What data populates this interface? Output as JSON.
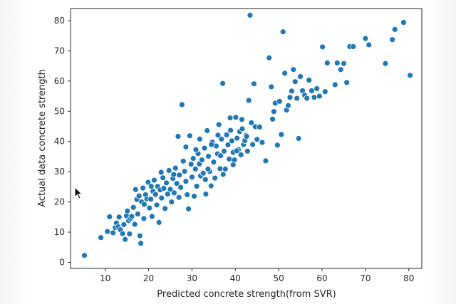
{
  "chart_data": {
    "type": "scatter",
    "title": "",
    "xlabel": "Predicted concrete strength(from SVR)",
    "ylabel": "Actual data concrete strength",
    "xlim": [
      2,
      83
    ],
    "ylim": [
      -2,
      84
    ],
    "xticks": [
      "10",
      "20",
      "30",
      "40",
      "50",
      "60",
      "70",
      "80"
    ],
    "yticks": [
      "0",
      "10",
      "20",
      "30",
      "40",
      "50",
      "60",
      "70",
      "80"
    ],
    "grid": false,
    "marker_color": "#1f77b4",
    "marker_edge_color": "#ffffff",
    "series": [
      {
        "points": [
          [
            5.2,
            2.3
          ],
          [
            9,
            8.2
          ],
          [
            10.5,
            10.2
          ],
          [
            11,
            15.1
          ],
          [
            11.8,
            9.8
          ],
          [
            12.3,
            11.5
          ],
          [
            12.6,
            13.0
          ],
          [
            13.0,
            11.8
          ],
          [
            13.2,
            15.0
          ],
          [
            13.5,
            10.8
          ],
          [
            14.0,
            9.5
          ],
          [
            14.3,
            12.5
          ],
          [
            14.6,
            7.6
          ],
          [
            14.9,
            15.4
          ],
          [
            15.1,
            17.0
          ],
          [
            15.4,
            13.8
          ],
          [
            15.6,
            9.4
          ],
          [
            15.8,
            14.5
          ],
          [
            16.1,
            15.2
          ],
          [
            16.5,
            18.2
          ],
          [
            17.0,
            24.1
          ],
          [
            17.3,
            20.8
          ],
          [
            17.5,
            16.0
          ],
          [
            17.8,
            22.0
          ],
          [
            18.0,
            8.8
          ],
          [
            18.2,
            6.3
          ],
          [
            18.4,
            20.0
          ],
          [
            18.7,
            24.6
          ],
          [
            19.0,
            19.2
          ],
          [
            19.3,
            22.4
          ],
          [
            19.6,
            21.0
          ],
          [
            19.9,
            26.5
          ],
          [
            20.2,
            18.0
          ],
          [
            20.5,
            20.9
          ],
          [
            20.8,
            15.2
          ],
          [
            21.0,
            23.5
          ],
          [
            21.3,
            27.2
          ],
          [
            21.6,
            22.5
          ],
          [
            21.9,
            19.0
          ],
          [
            22.1,
            25.1
          ],
          [
            22.4,
            13.2
          ],
          [
            22.7,
            24.0
          ],
          [
            23.0,
            21.3
          ],
          [
            23.3,
            28.0
          ],
          [
            23.5,
            24.5
          ],
          [
            23.8,
            17.8
          ],
          [
            24.1,
            26.3
          ],
          [
            24.4,
            22.6
          ],
          [
            24.7,
            30.4
          ],
          [
            25.0,
            24.2
          ],
          [
            25.3,
            20.0
          ],
          [
            25.6,
            27.8
          ],
          [
            25.9,
            23.0
          ],
          [
            26.2,
            31.2
          ],
          [
            26.5,
            26.1
          ],
          [
            26.8,
            41.7
          ],
          [
            27.1,
            28.9
          ],
          [
            27.4,
            24.8
          ],
          [
            27.7,
            52.2
          ],
          [
            28.0,
            33.5
          ],
          [
            28.3,
            30.1
          ],
          [
            28.6,
            26.8
          ],
          [
            28.9,
            22.4
          ],
          [
            29.2,
            17.7
          ],
          [
            29.5,
            41.9
          ],
          [
            29.8,
            32.5
          ],
          [
            30.0,
            28.2
          ],
          [
            30.3,
            34.4
          ],
          [
            30.5,
            21.9
          ],
          [
            30.8,
            30.9
          ],
          [
            31.1,
            25.2
          ],
          [
            31.4,
            36.0
          ],
          [
            31.7,
            32.6
          ],
          [
            32.0,
            28.6
          ],
          [
            32.3,
            33.9
          ],
          [
            32.6,
            29.5
          ],
          [
            32.9,
            37.8
          ],
          [
            33.2,
            22.6
          ],
          [
            33.5,
            43.6
          ],
          [
            33.8,
            35.1
          ],
          [
            34.1,
            30.1
          ],
          [
            34.4,
            25.3
          ],
          [
            34.7,
            39.8
          ],
          [
            35.0,
            33.2
          ],
          [
            35.3,
            27.9
          ],
          [
            35.6,
            38.5
          ],
          [
            35.9,
            35.9
          ],
          [
            36.2,
            45.6
          ],
          [
            36.5,
            31.0
          ],
          [
            36.8,
            40.8
          ],
          [
            37.1,
            59.2
          ],
          [
            37.4,
            36.8
          ],
          [
            37.7,
            30.9
          ],
          [
            38.0,
            42.2
          ],
          [
            38.3,
            38.9
          ],
          [
            38.6,
            34.2
          ],
          [
            38.9,
            43.7
          ],
          [
            39.2,
            40.2
          ],
          [
            39.5,
            36.4
          ],
          [
            39.8,
            33.9
          ],
          [
            40.1,
            48.0
          ],
          [
            40.4,
            41.1
          ],
          [
            40.7,
            37.3
          ],
          [
            41.0,
            43.3
          ],
          [
            41.3,
            35.6
          ],
          [
            41.6,
            44.2
          ],
          [
            41.9,
            39.0
          ],
          [
            42.2,
            40.3
          ],
          [
            42.5,
            42.1
          ],
          [
            42.8,
            36.8
          ],
          [
            43.1,
            53.6
          ],
          [
            43.4,
            81.8
          ],
          [
            43.7,
            46.2
          ],
          [
            44.0,
            39.0
          ],
          [
            44.3,
            59.1
          ],
          [
            44.6,
            44.9
          ],
          [
            45.0,
            40.7
          ],
          [
            45.6,
            44.8
          ],
          [
            46.2,
            39.7
          ],
          [
            47.0,
            33.6
          ],
          [
            47.8,
            67.7
          ],
          [
            48.3,
            58.1
          ],
          [
            48.6,
            47.4
          ],
          [
            48.9,
            49.9
          ],
          [
            49.2,
            52.7
          ],
          [
            49.7,
            38.8
          ],
          [
            50.2,
            53.3
          ],
          [
            50.6,
            42.3
          ],
          [
            51.0,
            76.3
          ],
          [
            51.4,
            62.6
          ],
          [
            51.8,
            50.4
          ],
          [
            52.2,
            51.9
          ],
          [
            52.6,
            54.6
          ],
          [
            53.0,
            56.7
          ],
          [
            53.4,
            63.8
          ],
          [
            53.8,
            59.8
          ],
          [
            54.2,
            54.3
          ],
          [
            54.6,
            41.0
          ],
          [
            55.0,
            61.5
          ],
          [
            55.5,
            56.8
          ],
          [
            56.0,
            55.3
          ],
          [
            56.5,
            54.3
          ],
          [
            57.0,
            60.3
          ],
          [
            57.6,
            56.8
          ],
          [
            58.2,
            54.6
          ],
          [
            58.8,
            57.5
          ],
          [
            59.4,
            55.0
          ],
          [
            60.1,
            71.3
          ],
          [
            60.7,
            56.5
          ],
          [
            61.2,
            66.0
          ],
          [
            63.0,
            58.8
          ],
          [
            63.5,
            66.0
          ],
          [
            64.3,
            63.8
          ],
          [
            65.0,
            65.8
          ],
          [
            65.7,
            59.5
          ],
          [
            66.4,
            71.4
          ],
          [
            67.2,
            71.4
          ],
          [
            70.0,
            74.1
          ],
          [
            70.8,
            72.0
          ],
          [
            74.6,
            65.8
          ],
          [
            76.2,
            73.7
          ],
          [
            76.8,
            77.1
          ],
          [
            78.8,
            79.4
          ],
          [
            80.3,
            61.9
          ],
          [
            28.6,
            38.2
          ],
          [
            31.8,
            40.8
          ],
          [
            33.1,
            27.4
          ],
          [
            34.5,
            39.0
          ],
          [
            36.0,
            42.1
          ],
          [
            37.2,
            29.1
          ],
          [
            38.8,
            47.8
          ],
          [
            40.3,
            36.9
          ],
          [
            41.5,
            47.3
          ],
          [
            42.6,
            41.7
          ],
          [
            25.8,
            29.1
          ],
          [
            27.0,
            21.5
          ],
          [
            22.9,
            29.8
          ],
          [
            20.6,
            25.2
          ],
          [
            18.9,
            14.5
          ],
          [
            16.8,
            12.6
          ],
          [
            30.9,
            37.3
          ],
          [
            33.7,
            30.9
          ],
          [
            36.6,
            35.3
          ],
          [
            39.5,
            32.3
          ]
        ]
      }
    ]
  }
}
